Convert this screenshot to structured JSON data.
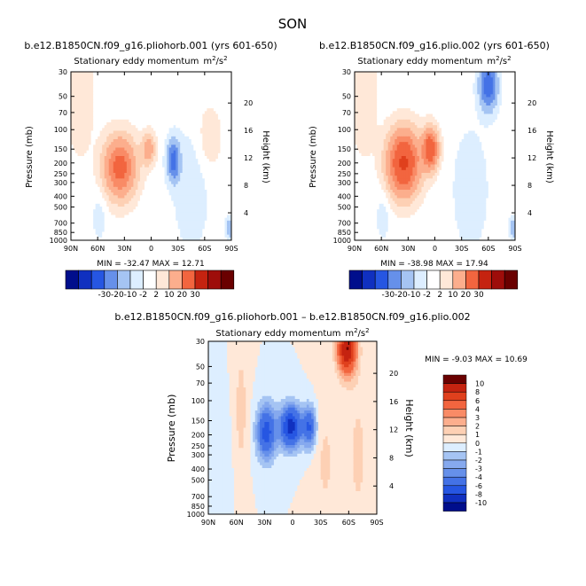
{
  "figure": {
    "season": "SON"
  },
  "colors": {
    "pos": [
      "#ffe8d8",
      "#fdd0b4",
      "#fcae8d",
      "#f98b66",
      "#f2653f",
      "#e0401d",
      "#c52310",
      "#9e0d0a",
      "#6a0000"
    ],
    "neg": [
      "#ddeeff",
      "#c4dcfa",
      "#a5c4f3",
      "#86a9ee",
      "#6690ea",
      "#4472e6",
      "#2656e2",
      "#1030c0",
      "#000e8c"
    ]
  },
  "chart_data": [
    {
      "id": "panel-a",
      "type": "contour",
      "title": "b.e12.B1850CN.f09_g16.pliohorb.001 (yrs 601-650)",
      "subtitle": "Stationary eddy momentum",
      "units_base": "m",
      "units_exp": "2",
      "units_slash": "/s",
      "units_exp2": "2",
      "xlabel": "",
      "ylabel": "Pressure (mb)",
      "y2label": "Height (km)",
      "x_ticks": [
        "90N",
        "60N",
        "30N",
        "0",
        "30S",
        "60S",
        "90S"
      ],
      "x_values": [
        90,
        60,
        30,
        0,
        -30,
        -60,
        -90
      ],
      "y_ticks": [
        "30",
        "50",
        "70",
        "100",
        "150",
        "200",
        "250",
        "300",
        "400",
        "500",
        "700",
        "850",
        "1000"
      ],
      "y_values": [
        30,
        50,
        70,
        100,
        150,
        200,
        250,
        300,
        400,
        500,
        700,
        850,
        1000
      ],
      "y2_ticks": [
        "4",
        "8",
        "12",
        "16",
        "20"
      ],
      "y2_values": [
        4,
        8,
        12,
        16,
        20
      ],
      "stats": "MIN = -32.47   MAX = 12.71",
      "min": -32.47,
      "max": 12.71,
      "colorbar_labels": [
        "-30",
        "-20",
        "-10",
        "-2",
        "2",
        "10",
        "20",
        "30"
      ],
      "features": [
        {
          "lat": 35,
          "p": 220,
          "value": 12,
          "sx": 12,
          "sp": 0.42
        },
        {
          "lat": 3,
          "p": 150,
          "value": 6,
          "sx": 5,
          "sp": 0.22
        },
        {
          "lat": -25,
          "p": 190,
          "value": -7,
          "sx": 5,
          "sp": 0.3
        },
        {
          "lat": -45,
          "p": 350,
          "value": -1.5,
          "sx": 14,
          "sp": 0.9
        },
        {
          "lat": 58,
          "p": 600,
          "value": -1.2,
          "sx": 6,
          "sp": 0.4
        },
        {
          "lat": 80,
          "p": 50,
          "value": 2,
          "sx": 10,
          "sp": 0.8
        },
        {
          "lat": -65,
          "p": 120,
          "value": 1.6,
          "sx": 10,
          "sp": 0.5
        },
        {
          "lat": -88,
          "p": 780,
          "value": -4,
          "sx": 3,
          "sp": 0.15
        }
      ]
    },
    {
      "id": "panel-b",
      "type": "contour",
      "title": "b.e12.B1850CN.f09_g16.plio.002 (yrs 601-650)",
      "subtitle": "Stationary eddy momentum",
      "units_base": "m",
      "units_exp": "2",
      "units_slash": "/s",
      "units_exp2": "2",
      "xlabel": "",
      "ylabel": "Pressure (mb)",
      "y2label": "Height (km)",
      "x_ticks": [
        "90N",
        "60N",
        "30N",
        "0",
        "30S",
        "60S",
        "90S"
      ],
      "x_values": [
        90,
        60,
        30,
        0,
        -30,
        -60,
        -90
      ],
      "y_ticks": [
        "30",
        "50",
        "70",
        "100",
        "150",
        "200",
        "250",
        "300",
        "400",
        "500",
        "700",
        "850",
        "1000"
      ],
      "y_values": [
        30,
        50,
        70,
        100,
        150,
        200,
        250,
        300,
        400,
        500,
        700,
        850,
        1000
      ],
      "y2_ticks": [
        "4",
        "8",
        "12",
        "16",
        "20"
      ],
      "y2_values": [
        4,
        8,
        12,
        16,
        20
      ],
      "stats": "MIN = -38.98   MAX = 17.94",
      "min": -38.98,
      "max": 17.94,
      "colorbar_labels": [
        "-30",
        "-20",
        "-10",
        "-2",
        "2",
        "10",
        "20",
        "30"
      ],
      "features": [
        {
          "lat": 35,
          "p": 200,
          "value": 16,
          "sx": 12,
          "sp": 0.45
        },
        {
          "lat": 5,
          "p": 150,
          "value": 14,
          "sx": 6,
          "sp": 0.28
        },
        {
          "lat": -60,
          "p": 40,
          "value": -8,
          "sx": 7,
          "sp": 0.35
        },
        {
          "lat": -40,
          "p": 350,
          "value": -1.5,
          "sx": 14,
          "sp": 0.9
        },
        {
          "lat": 58,
          "p": 600,
          "value": -1.2,
          "sx": 6,
          "sp": 0.4
        },
        {
          "lat": 80,
          "p": 50,
          "value": 2,
          "sx": 10,
          "sp": 0.8
        },
        {
          "lat": -88,
          "p": 780,
          "value": -4,
          "sx": 3,
          "sp": 0.15
        }
      ]
    },
    {
      "id": "panel-c",
      "type": "contour",
      "title": "b.e12.B1850CN.f09_g16.pliohorb.001 – b.e12.B1850CN.f09_g16.plio.002",
      "subtitle": "Stationary eddy momentum",
      "units_base": "m",
      "units_exp": "2",
      "units_slash": "/s",
      "units_exp2": "2",
      "xlabel": "",
      "ylabel": "Pressure (mb)",
      "y2label": "Height (km)",
      "x_ticks": [
        "90N",
        "60N",
        "30N",
        "0",
        "30S",
        "60S",
        "90S"
      ],
      "x_values": [
        90,
        60,
        30,
        0,
        -30,
        -60,
        -90
      ],
      "y_ticks": [
        "30",
        "50",
        "70",
        "100",
        "150",
        "200",
        "250",
        "300",
        "400",
        "500",
        "700",
        "850",
        "1000"
      ],
      "y_values": [
        30,
        50,
        70,
        100,
        150,
        200,
        250,
        300,
        400,
        500,
        700,
        850,
        1000
      ],
      "y2_ticks": [
        "4",
        "8",
        "12",
        "16",
        "20"
      ],
      "y2_values": [
        4,
        8,
        12,
        16,
        20
      ],
      "stats": "MIN = -9.03   MAX = 10.69",
      "min": -9.03,
      "max": 10.69,
      "colorbar_labels": [
        "10",
        "8",
        "6",
        "4",
        "3",
        "2",
        "1",
        "0",
        "-1",
        "-2",
        "-3",
        "-4",
        "-6",
        "-8",
        "-10"
      ],
      "features": [
        {
          "lat": 28,
          "p": 190,
          "value": -7,
          "sx": 7,
          "sp": 0.38
        },
        {
          "lat": 2,
          "p": 170,
          "value": -9,
          "sx": 8,
          "sp": 0.3
        },
        {
          "lat": -18,
          "p": 170,
          "value": -6,
          "sx": 5,
          "sp": 0.28
        },
        {
          "lat": -58,
          "p": 35,
          "value": 10,
          "sx": 7,
          "sp": 0.35
        },
        {
          "lat": 55,
          "p": 120,
          "value": 1.5,
          "sx": 5,
          "sp": 0.9
        },
        {
          "lat": -35,
          "p": 350,
          "value": 1.2,
          "sx": 8,
          "sp": 0.9
        },
        {
          "lat": -70,
          "p": 300,
          "value": 1.2,
          "sx": 10,
          "sp": 1.2
        },
        {
          "lat": 75,
          "p": 400,
          "value": -0.8,
          "sx": 6,
          "sp": 0.8
        }
      ]
    }
  ]
}
